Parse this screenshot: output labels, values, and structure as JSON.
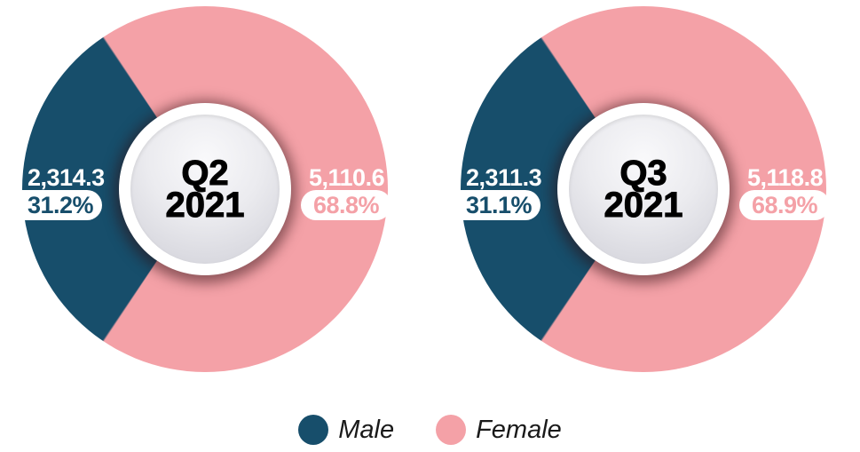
{
  "background": "#ffffff",
  "colors": {
    "male": "#174e6b",
    "female": "#f4a1a7",
    "center_text": "#000000",
    "value_text": "#ffffff",
    "pill_background": "#ffffff"
  },
  "legend": {
    "items": [
      {
        "label": "Male",
        "color": "#174e6b"
      },
      {
        "label": "Female",
        "color": "#f4a1a7"
      }
    ]
  },
  "chart_data": [
    {
      "type": "pie",
      "subtype": "donut",
      "title": "Q2 2021",
      "center": {
        "line1": "Q2",
        "line2": "2021"
      },
      "legend_position": "bottom",
      "series": [
        {
          "name": "Male",
          "value": 2314.3,
          "value_label": "2,314.3",
          "pct": 31.2,
          "pct_label": "31.2%",
          "color": "#174e6b"
        },
        {
          "name": "Female",
          "value": 5110.6,
          "value_label": "5,110.6",
          "pct": 68.8,
          "pct_label": "68.8%",
          "color": "#f4a1a7"
        }
      ]
    },
    {
      "type": "pie",
      "subtype": "donut",
      "title": "Q3 2021",
      "center": {
        "line1": "Q3",
        "line2": "2021"
      },
      "legend_position": "bottom",
      "series": [
        {
          "name": "Male",
          "value": 2311.3,
          "value_label": "2,311.3",
          "pct": 31.1,
          "pct_label": "31.1%",
          "color": "#174e6b"
        },
        {
          "name": "Female",
          "value": 5118.8,
          "value_label": "5,118.8",
          "pct": 68.9,
          "pct_label": "68.9%",
          "color": "#f4a1a7"
        }
      ]
    }
  ]
}
